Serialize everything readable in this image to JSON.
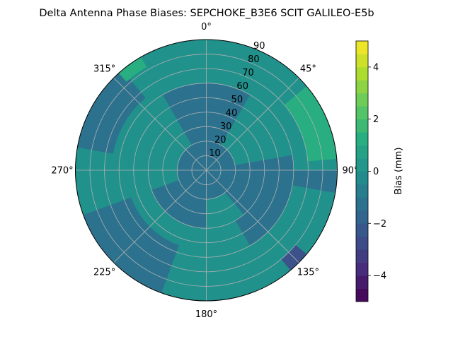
{
  "chart_data": {
    "type": "heatmap",
    "projection": "polar",
    "title": "Delta Antenna Phase Biases: SEPCHOKE_B3E6   SCIT GALILEO-E5b",
    "theta_direction": "clockwise",
    "theta_zero": "top",
    "theta_ticks": [
      "0°",
      "45°",
      "90°",
      "135°",
      "180°",
      "225°",
      "270°",
      "315°"
    ],
    "theta_tick_values": [
      0,
      45,
      90,
      135,
      180,
      225,
      270,
      315
    ],
    "radial_axis": "zenith angle",
    "radial_range": [
      0,
      90
    ],
    "radial_ticks": [
      "10",
      "20",
      "30",
      "40",
      "50",
      "60",
      "70",
      "80",
      "90"
    ],
    "radial_tick_values": [
      10,
      20,
      30,
      40,
      50,
      60,
      70,
      80,
      90
    ],
    "radial_tick_angle_deg": 22.5,
    "grid": true,
    "colorbar": {
      "label": "Bias (mm)",
      "range": [
        -5,
        5
      ],
      "levels": [
        -5,
        -4.5,
        -4,
        -3.5,
        -3,
        -2.5,
        -2,
        -1.5,
        -1,
        -0.5,
        0,
        0.5,
        1,
        1.5,
        2,
        2.5,
        3,
        3.5,
        4,
        4.5,
        5
      ],
      "tick_values": [
        -4,
        -2,
        0,
        2,
        4
      ],
      "tick_labels": [
        "−4",
        "−2",
        "0",
        "2",
        "4"
      ],
      "colors": [
        "#440154",
        "#472d7b",
        "#3b528b",
        "#2c728e",
        "#21918c",
        "#28ae80",
        "#5ec962",
        "#addc30",
        "#fde725"
      ],
      "colormap": "viridis"
    },
    "field": {
      "background_level_color": "#21918c",
      "regions": [
        {
          "color": "#2c728e",
          "value_range": [
            -1,
            0
          ],
          "zenith_range": [
            0,
            20
          ],
          "azimuth_range": [
            0,
            360
          ]
        },
        {
          "color": "#2c728e",
          "value_range": [
            -1,
            0
          ],
          "zenith_range": [
            20,
            60
          ],
          "azimuth_range": [
            330,
            30
          ]
        },
        {
          "color": "#2c728e",
          "value_range": [
            -1,
            0
          ],
          "zenith_range": [
            20,
            60
          ],
          "azimuth_range": [
            80,
            140
          ]
        },
        {
          "color": "#2c728e",
          "value_range": [
            -1,
            0
          ],
          "zenith_range": [
            10,
            40
          ],
          "azimuth_range": [
            180,
            250
          ]
        },
        {
          "color": "#2c728e",
          "value_range": [
            -1,
            0
          ],
          "zenith_range": [
            55,
            90
          ],
          "azimuth_range": [
            200,
            250
          ]
        },
        {
          "color": "#2c728e",
          "value_range": [
            -1,
            0
          ],
          "zenith_range": [
            65,
            90
          ],
          "azimuth_range": [
            280,
            320
          ]
        },
        {
          "color": "#2c728e",
          "value_range": [
            -1,
            0
          ],
          "zenith_range": [
            40,
            60
          ],
          "azimuth_range": [
            120,
            150
          ]
        },
        {
          "color": "#2c728e",
          "value_range": [
            -1,
            0
          ],
          "zenith_range": [
            30,
            90
          ],
          "azimuth_range": [
            90,
            100
          ]
        },
        {
          "color": "#3b528b",
          "value_range": [
            -2,
            -1
          ],
          "zenith_range": [
            80,
            90
          ],
          "azimuth_range": [
            130,
            140
          ]
        },
        {
          "color": "#28ae80",
          "value_range": [
            1,
            2
          ],
          "zenith_range": [
            70,
            90
          ],
          "azimuth_range": [
            50,
            85
          ]
        },
        {
          "color": "#28ae80",
          "value_range": [
            1,
            2
          ],
          "zenith_range": [
            82,
            90
          ],
          "azimuth_range": [
            318,
            330
          ]
        }
      ]
    }
  }
}
